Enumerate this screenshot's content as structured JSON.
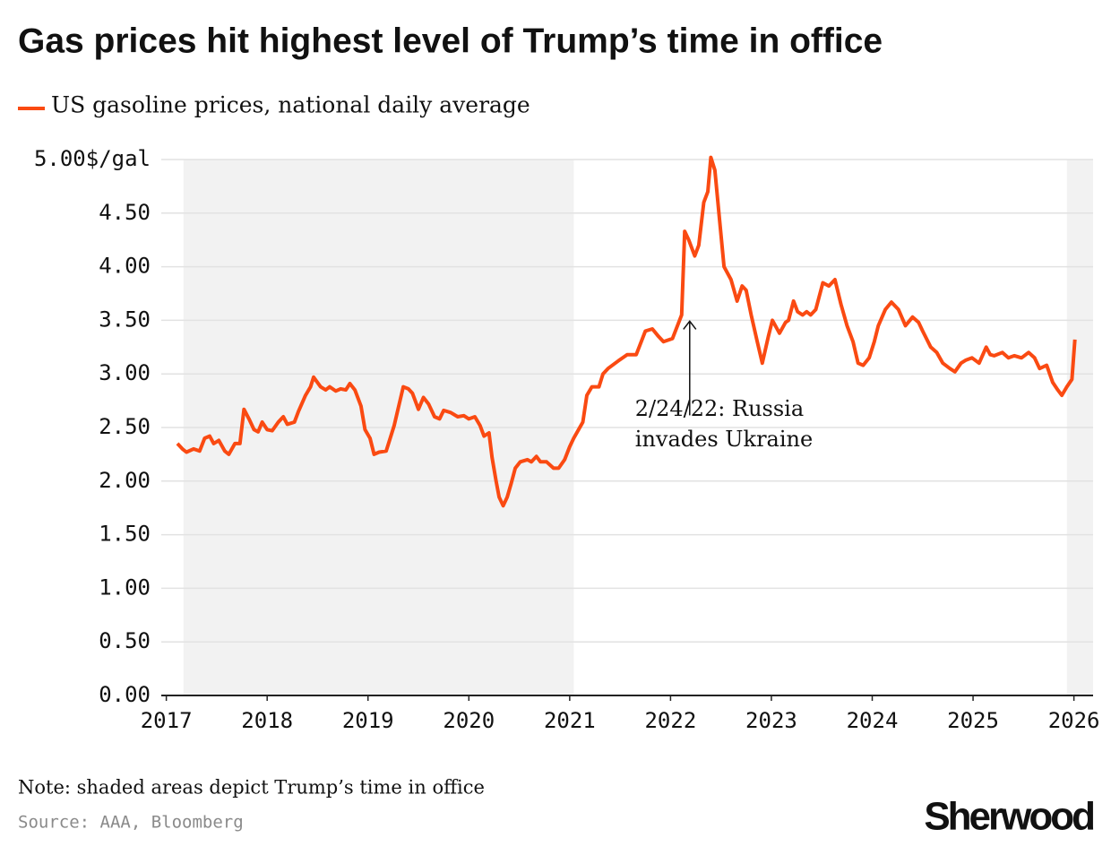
{
  "chart_data": {
    "type": "line",
    "title": "Gas prices hit highest level of Trump’s time in office",
    "note": "Note: shaded areas depict Trump’s time in office",
    "source": "Source: AAA, Bloomberg",
    "brand": "Sherwood",
    "xlim": [
      2016.95,
      2026.19
    ],
    "xticks": [
      2017,
      2018,
      2019,
      2020,
      2021,
      2022,
      2023,
      2024,
      2025,
      2026
    ],
    "ylim": [
      0,
      5
    ],
    "yticks": [
      {
        "value": 0,
        "label": "0.00"
      },
      {
        "value": 0.5,
        "label": "0.50"
      },
      {
        "value": 1,
        "label": "1.00"
      },
      {
        "value": 1.5,
        "label": "1.50"
      },
      {
        "value": 2,
        "label": "2.00"
      },
      {
        "value": 2.5,
        "label": "2.50"
      },
      {
        "value": 3,
        "label": "3.00"
      },
      {
        "value": 3.5,
        "label": "3.50"
      },
      {
        "value": 4,
        "label": "4.00"
      },
      {
        "value": 4.5,
        "label": "4.50"
      },
      {
        "value": 5,
        "label": "5.00$/gal"
      }
    ],
    "grid": true,
    "shaded_ranges": [
      [
        2017.17,
        2021.04
      ],
      [
        2025.93,
        2026.19
      ]
    ],
    "annotation": {
      "lines": [
        "2/24/22: Russia",
        "invades Ukraine"
      ],
      "x": 2022.19,
      "y": 3.5
    },
    "x": [
      2017.11,
      2017.16,
      2017.2,
      2017.27,
      2017.33,
      2017.38,
      2017.43,
      2017.47,
      2017.52,
      2017.58,
      2017.62,
      2017.68,
      2017.73,
      2017.77,
      2017.82,
      2017.87,
      2017.91,
      2017.95,
      2018.0,
      2018.05,
      2018.11,
      2018.16,
      2018.2,
      2018.27,
      2018.31,
      2018.38,
      2018.43,
      2018.46,
      2018.53,
      2018.58,
      2018.62,
      2018.68,
      2018.73,
      2018.78,
      2018.82,
      2018.87,
      2018.93,
      2018.97,
      2019.02,
      2019.06,
      2019.11,
      2019.18,
      2019.22,
      2019.26,
      2019.31,
      2019.35,
      2019.4,
      2019.44,
      2019.5,
      2019.55,
      2019.6,
      2019.66,
      2019.71,
      2019.75,
      2019.82,
      2019.89,
      2019.95,
      2020.0,
      2020.06,
      2020.11,
      2020.15,
      2020.2,
      2020.23,
      2020.27,
      2020.3,
      2020.34,
      2020.38,
      2020.42,
      2020.46,
      2020.51,
      2020.58,
      2020.62,
      2020.67,
      2020.71,
      2020.77,
      2020.84,
      2020.89,
      2020.95,
      2021.0,
      2021.04,
      2021.13,
      2021.17,
      2021.22,
      2021.29,
      2021.33,
      2021.38,
      2021.48,
      2021.57,
      2021.66,
      2021.75,
      2021.82,
      2021.88,
      2021.93,
      2022.02,
      2022.11,
      2022.14,
      2022.18,
      2022.24,
      2022.28,
      2022.33,
      2022.37,
      2022.4,
      2022.44,
      2022.48,
      2022.53,
      2022.6,
      2022.66,
      2022.71,
      2022.75,
      2022.8,
      2022.86,
      2022.91,
      2022.97,
      2023.01,
      2023.08,
      2023.14,
      2023.17,
      2023.22,
      2023.26,
      2023.31,
      2023.35,
      2023.39,
      2023.44,
      2023.51,
      2023.57,
      2023.63,
      2023.69,
      2023.75,
      2023.81,
      2023.86,
      2023.91,
      2023.97,
      2024.02,
      2024.06,
      2024.13,
      2024.19,
      2024.26,
      2024.33,
      2024.4,
      2024.46,
      2024.5,
      2024.58,
      2024.64,
      2024.7,
      2024.77,
      2024.82,
      2024.88,
      2024.93,
      2024.99,
      2025.06,
      2025.13,
      2025.17,
      2025.21,
      2025.29,
      2025.35,
      2025.41,
      2025.48,
      2025.55,
      2025.61,
      2025.66,
      2025.73,
      2025.79,
      2025.84,
      2025.88,
      2025.93,
      2025.98,
      2026.01
    ],
    "series": [
      {
        "name": "US gasoline prices, national daily average",
        "color": "#fa4a12",
        "values": [
          2.35,
          2.3,
          2.27,
          2.3,
          2.28,
          2.4,
          2.42,
          2.35,
          2.38,
          2.28,
          2.25,
          2.35,
          2.35,
          2.67,
          2.58,
          2.48,
          2.46,
          2.55,
          2.48,
          2.47,
          2.55,
          2.6,
          2.53,
          2.55,
          2.65,
          2.8,
          2.88,
          2.97,
          2.88,
          2.85,
          2.88,
          2.84,
          2.86,
          2.85,
          2.91,
          2.85,
          2.7,
          2.48,
          2.4,
          2.25,
          2.27,
          2.28,
          2.4,
          2.52,
          2.72,
          2.88,
          2.86,
          2.82,
          2.67,
          2.78,
          2.72,
          2.6,
          2.58,
          2.66,
          2.64,
          2.6,
          2.61,
          2.58,
          2.6,
          2.52,
          2.42,
          2.45,
          2.22,
          2.0,
          1.85,
          1.77,
          1.85,
          1.98,
          2.12,
          2.18,
          2.2,
          2.18,
          2.23,
          2.18,
          2.18,
          2.12,
          2.12,
          2.2,
          2.32,
          2.4,
          2.55,
          2.8,
          2.88,
          2.88,
          3.0,
          3.05,
          3.12,
          3.18,
          3.18,
          3.4,
          3.42,
          3.35,
          3.3,
          3.33,
          3.55,
          4.33,
          4.25,
          4.1,
          4.2,
          4.6,
          4.7,
          5.02,
          4.9,
          4.5,
          4.0,
          3.88,
          3.68,
          3.82,
          3.78,
          3.55,
          3.3,
          3.1,
          3.35,
          3.5,
          3.38,
          3.48,
          3.5,
          3.68,
          3.58,
          3.55,
          3.58,
          3.55,
          3.6,
          3.85,
          3.82,
          3.88,
          3.65,
          3.45,
          3.3,
          3.1,
          3.08,
          3.15,
          3.3,
          3.45,
          3.6,
          3.67,
          3.6,
          3.45,
          3.53,
          3.48,
          3.4,
          3.25,
          3.2,
          3.1,
          3.05,
          3.02,
          3.1,
          3.13,
          3.15,
          3.1,
          3.25,
          3.18,
          3.17,
          3.2,
          3.15,
          3.17,
          3.15,
          3.2,
          3.15,
          3.05,
          3.08,
          2.92,
          2.85,
          2.8,
          2.88,
          2.95,
          3.32
        ]
      }
    ]
  }
}
